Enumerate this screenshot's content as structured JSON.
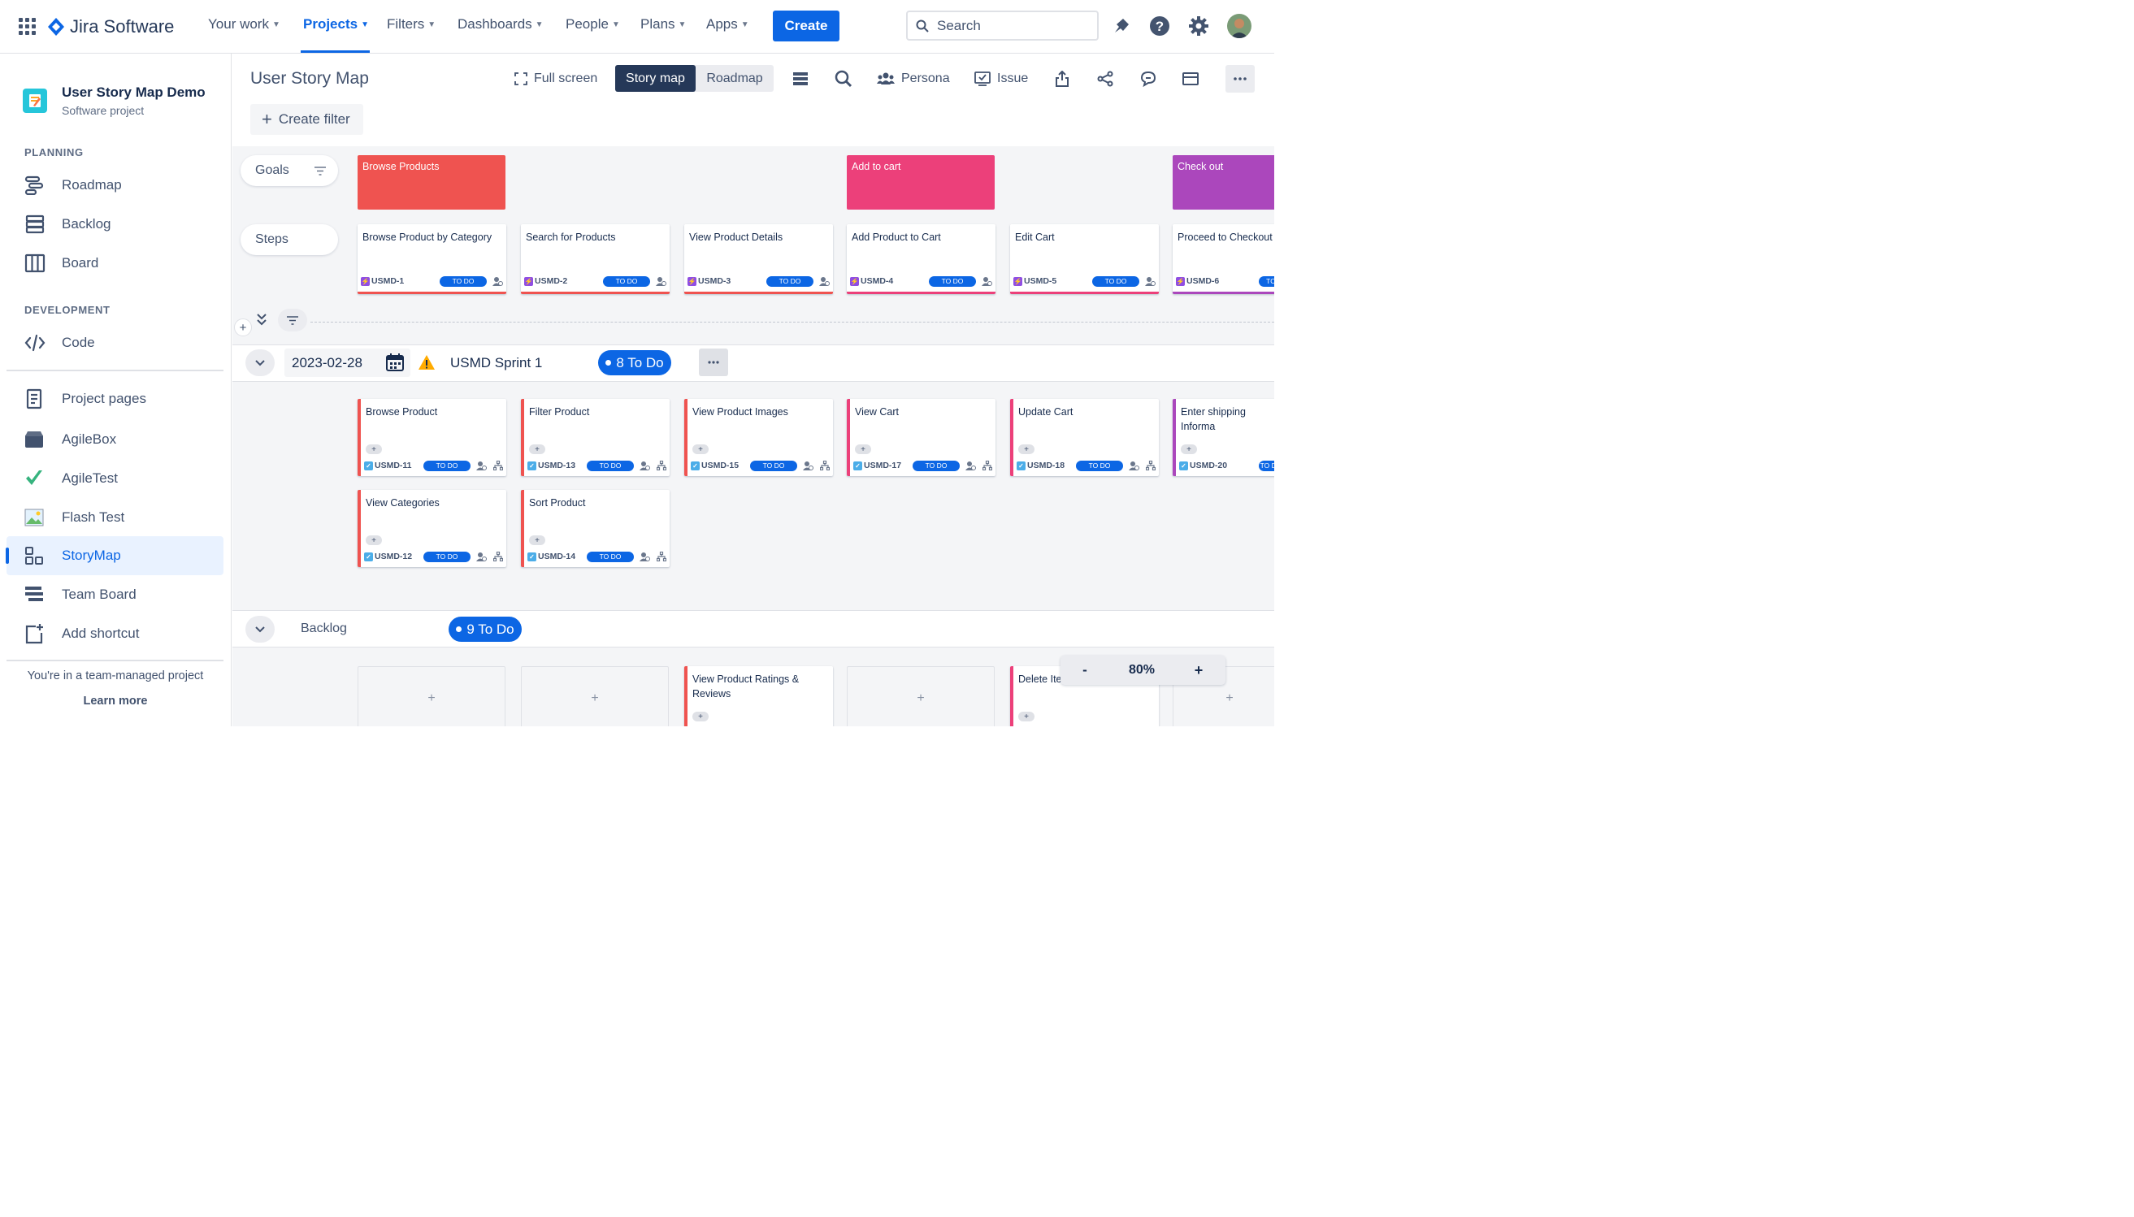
{
  "topnav": {
    "app_name": "Jira Software",
    "items": [
      {
        "label": "Your work"
      },
      {
        "label": "Projects"
      },
      {
        "label": "Filters"
      },
      {
        "label": "Dashboards"
      },
      {
        "label": "People"
      },
      {
        "label": "Plans"
      },
      {
        "label": "Apps"
      }
    ],
    "create_label": "Create",
    "search_placeholder": "Search"
  },
  "sidebar": {
    "project_name": "User Story Map Demo",
    "project_type": "Software project",
    "planning_heading": "PLANNING",
    "development_heading": "DEVELOPMENT",
    "items": [
      {
        "label": "Roadmap"
      },
      {
        "label": "Backlog"
      },
      {
        "label": "Board"
      },
      {
        "label": "Code"
      },
      {
        "label": "Project pages"
      },
      {
        "label": "AgileBox"
      },
      {
        "label": "AgileTest"
      },
      {
        "label": "Flash Test"
      },
      {
        "label": "StoryMap"
      },
      {
        "label": "Team Board"
      },
      {
        "label": "Add shortcut"
      }
    ],
    "footer_text": "You're in a team-managed project",
    "learn_more": "Learn more"
  },
  "header": {
    "title": "User Story Map",
    "full_screen": "Full screen",
    "story_map_tab": "Story map",
    "roadmap_tab": "Roadmap",
    "persona": "Persona",
    "issue": "Issue",
    "create_filter": "Create filter"
  },
  "board": {
    "goals_label": "Goals",
    "steps_label": "Steps",
    "goals": [
      {
        "title": "Browse Products",
        "color": "#ef5350"
      },
      {
        "title": "Add to cart",
        "color": "#ec407a"
      },
      {
        "title": "Check out",
        "color": "#ab47bc"
      }
    ],
    "steps": [
      {
        "title": "Browse Product by Category",
        "key": "USMD-1",
        "status": "TO DO",
        "color": "#ef5350"
      },
      {
        "title": "Search for Products",
        "key": "USMD-2",
        "status": "TO DO",
        "color": "#ef5350"
      },
      {
        "title": "View Product Details",
        "key": "USMD-3",
        "status": "TO DO",
        "color": "#ef5350"
      },
      {
        "title": "Add Product to Cart",
        "key": "USMD-4",
        "status": "TO DO",
        "color": "#ec407a"
      },
      {
        "title": "Edit Cart",
        "key": "USMD-5",
        "status": "TO DO",
        "color": "#ec407a"
      },
      {
        "title": "Proceed to Checkout",
        "key": "USMD-6",
        "status": "TO",
        "color": "#ab47bc"
      }
    ],
    "sprint": {
      "date": "2023-02-28",
      "name": "USMD Sprint 1",
      "count_label": "8 To Do",
      "stories": [
        {
          "title": "Browse Product",
          "key": "USMD-11",
          "status": "TO DO",
          "color": "#ef5350",
          "col": 0,
          "row": 0
        },
        {
          "title": "Filter Product",
          "key": "USMD-13",
          "status": "TO DO",
          "color": "#ef5350",
          "col": 1,
          "row": 0
        },
        {
          "title": "View Product Images",
          "key": "USMD-15",
          "status": "TO DO",
          "color": "#ef5350",
          "col": 2,
          "row": 0
        },
        {
          "title": "View Cart",
          "key": "USMD-17",
          "status": "TO DO",
          "color": "#ec407a",
          "col": 3,
          "row": 0
        },
        {
          "title": "Update Cart",
          "key": "USMD-18",
          "status": "TO DO",
          "color": "#ec407a",
          "col": 4,
          "row": 0
        },
        {
          "title": "Enter shipping Informa",
          "key": "USMD-20",
          "status": "TO DO",
          "color": "#ab47bc",
          "col": 5,
          "row": 0
        },
        {
          "title": "View Categories",
          "key": "USMD-12",
          "status": "TO DO",
          "color": "#ef5350",
          "col": 0,
          "row": 1
        },
        {
          "title": "Sort Product",
          "key": "USMD-14",
          "status": "TO DO",
          "color": "#ef5350",
          "col": 1,
          "row": 1
        }
      ]
    },
    "backlog": {
      "name": "Backlog",
      "count_label": "9 To Do",
      "stories": [
        {
          "title": "View Product Ratings & Reviews",
          "color": "#ef5350",
          "col": 2
        },
        {
          "title": "Delete Iter",
          "color": "#ec407a",
          "col": 4
        }
      ]
    },
    "zoom": {
      "minus": "-",
      "value": "80%",
      "plus": "+"
    }
  }
}
